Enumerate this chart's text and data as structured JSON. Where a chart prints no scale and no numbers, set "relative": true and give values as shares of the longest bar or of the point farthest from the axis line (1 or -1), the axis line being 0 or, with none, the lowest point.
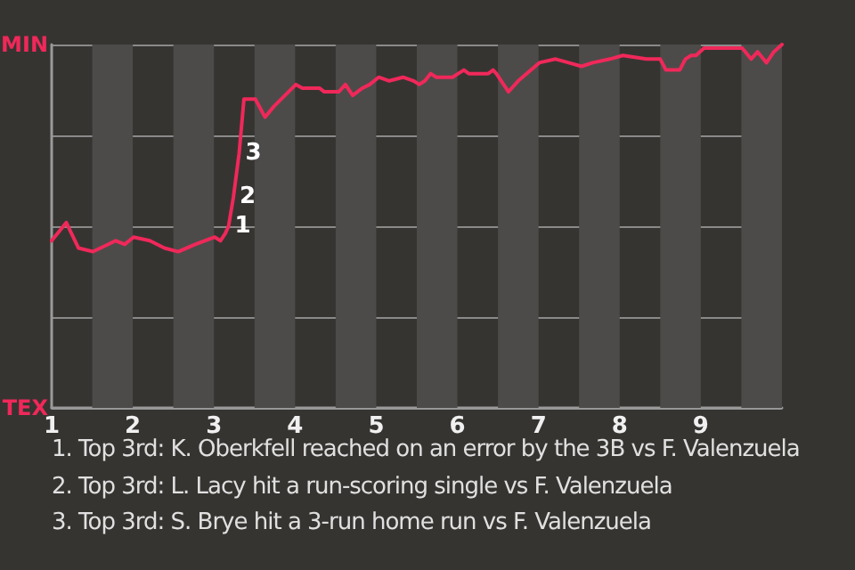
{
  "chart_data": {
    "type": "line",
    "relative": true,
    "x": [
      1,
      1.18,
      1.33,
      1.51,
      1.79,
      1.9,
      2.01,
      2.21,
      2.39,
      2.56,
      2.77,
      3.01,
      3.08,
      3.14,
      3.18,
      3.24,
      3.31,
      3.37,
      3.51,
      3.63,
      3.74,
      4.01,
      4.09,
      4.19,
      4.3,
      4.36,
      4.47,
      4.54,
      4.62,
      4.71,
      4.83,
      4.92,
      5.03,
      5.16,
      5.33,
      5.46,
      5.53,
      5.6,
      5.67,
      5.74,
      5.94,
      6.01,
      6.08,
      6.14,
      6.21,
      6.38,
      6.44,
      6.48,
      6.63,
      6.75,
      7.01,
      7.21,
      7.37,
      7.53,
      7.67,
      7.88,
      8.04,
      8.33,
      8.5,
      8.57,
      8.74,
      8.81,
      8.88,
      8.94,
      9.04,
      9.21,
      9.51,
      9.62,
      9.7,
      9.81,
      9.9,
      10
    ],
    "series": [
      {
        "color": "#f0285a",
        "values": [
          0.46,
          0.51,
          0.44,
          0.43,
          0.46,
          0.45,
          0.47,
          0.46,
          0.44,
          0.43,
          0.45,
          0.47,
          0.46,
          0.48,
          0.5,
          0.58,
          0.7,
          0.85,
          0.85,
          0.8,
          0.83,
          0.89,
          0.88,
          0.88,
          0.88,
          0.87,
          0.87,
          0.87,
          0.89,
          0.86,
          0.88,
          0.89,
          0.91,
          0.9,
          0.91,
          0.9,
          0.89,
          0.9,
          0.92,
          0.91,
          0.91,
          0.92,
          0.93,
          0.92,
          0.92,
          0.92,
          0.93,
          0.92,
          0.87,
          0.9,
          0.95,
          0.96,
          0.95,
          0.94,
          0.95,
          0.96,
          0.97,
          0.96,
          0.96,
          0.93,
          0.93,
          0.96,
          0.97,
          0.97,
          0.99,
          0.99,
          0.99,
          0.96,
          0.98,
          0.95,
          0.98,
          1
        ]
      }
    ],
    "xlim": [
      1,
      10
    ],
    "xticks": [
      1,
      2,
      3,
      4,
      5,
      6,
      7,
      8,
      9
    ],
    "grid": "y",
    "marker": "none",
    "line_style": "solid",
    "bands": [
      {
        "axis": "x",
        "from": 1.5,
        "to": 2,
        "color": "#4d4b49"
      },
      {
        "axis": "x",
        "from": 2.5,
        "to": 3,
        "color": "#4d4b49"
      },
      {
        "axis": "x",
        "from": 3.5,
        "to": 4,
        "color": "#4d4b49"
      },
      {
        "axis": "x",
        "from": 4.5,
        "to": 5,
        "color": "#4d4b49"
      },
      {
        "axis": "x",
        "from": 5.5,
        "to": 6,
        "color": "#4d4b49"
      },
      {
        "axis": "x",
        "from": 6.5,
        "to": 7,
        "color": "#4d4b49"
      },
      {
        "axis": "x",
        "from": 7.5,
        "to": 8,
        "color": "#4d4b49"
      },
      {
        "axis": "x",
        "from": 8.5,
        "to": 9,
        "color": "#4d4b49"
      },
      {
        "axis": "x",
        "from": 9.5,
        "to": 10,
        "color": "#4d4b49"
      }
    ],
    "annotations": [
      "MIN",
      "TEX",
      {
        "text": "1",
        "x": 3.18,
        "y": 0.5
      },
      {
        "text": "2",
        "x": 3.24,
        "y": 0.58
      },
      {
        "text": "3",
        "x": 3.31,
        "y": 0.7
      },
      "1. Top 3rd: K. Oberkfell reached on an error by the 3B vs F. Valenzuela",
      "2. Top 3rd: L. Lacy hit a run-scoring single vs F. Valenzuela",
      "3. Top 3rd: S. Brye hit a 3-run home run vs F. Valenzuela"
    ]
  }
}
